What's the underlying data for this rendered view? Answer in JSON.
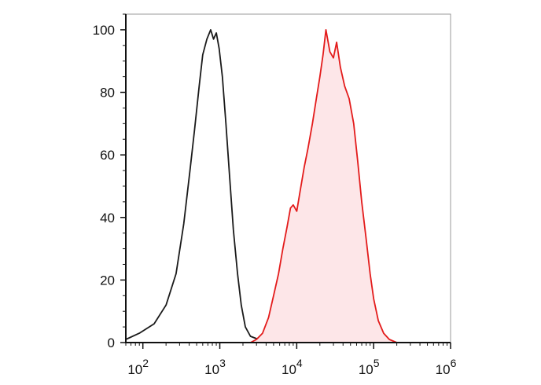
{
  "chart_data": {
    "type": "area",
    "x_scale": "log",
    "xlim": [
      60,
      1000000
    ],
    "ylim": [
      0,
      105
    ],
    "grid": false,
    "legend": "none",
    "x_ticks": [
      {
        "value": 100,
        "base": "10",
        "exp": "2"
      },
      {
        "value": 1000,
        "base": "10",
        "exp": "3"
      },
      {
        "value": 10000,
        "base": "10",
        "exp": "4"
      },
      {
        "value": 100000,
        "base": "10",
        "exp": "5"
      },
      {
        "value": 1000000,
        "base": "10",
        "exp": "6"
      }
    ],
    "y_ticks": [
      0,
      20,
      40,
      60,
      80,
      100
    ],
    "series": [
      {
        "color": "#1a1a1a",
        "fill": "none",
        "points": [
          [
            60,
            1
          ],
          [
            90,
            3
          ],
          [
            140,
            6
          ],
          [
            200,
            12
          ],
          [
            270,
            22
          ],
          [
            340,
            38
          ],
          [
            410,
            55
          ],
          [
            470,
            68
          ],
          [
            540,
            82
          ],
          [
            600,
            92
          ],
          [
            680,
            97
          ],
          [
            760,
            100
          ],
          [
            830,
            97
          ],
          [
            900,
            99
          ],
          [
            980,
            94
          ],
          [
            1080,
            85
          ],
          [
            1200,
            70
          ],
          [
            1350,
            52
          ],
          [
            1500,
            36
          ],
          [
            1700,
            22
          ],
          [
            1900,
            12
          ],
          [
            2150,
            5
          ],
          [
            2500,
            2
          ],
          [
            3200,
            1
          ],
          [
            4500,
            0
          ],
          [
            6000,
            0
          ]
        ]
      },
      {
        "color": "#e31b1b",
        "fill": "#fde6e8",
        "points": [
          [
            2500,
            0
          ],
          [
            3000,
            1
          ],
          [
            3600,
            3
          ],
          [
            4300,
            8
          ],
          [
            5000,
            15
          ],
          [
            5800,
            22
          ],
          [
            6600,
            30
          ],
          [
            7500,
            37
          ],
          [
            8300,
            43
          ],
          [
            9000,
            44
          ],
          [
            10000,
            42
          ],
          [
            11000,
            48
          ],
          [
            12500,
            56
          ],
          [
            14000,
            62
          ],
          [
            16000,
            70
          ],
          [
            18000,
            78
          ],
          [
            20000,
            85
          ],
          [
            22000,
            92
          ],
          [
            24000,
            100
          ],
          [
            27000,
            93
          ],
          [
            30000,
            91
          ],
          [
            33000,
            96
          ],
          [
            37000,
            88
          ],
          [
            42000,
            82
          ],
          [
            48000,
            78
          ],
          [
            55000,
            70
          ],
          [
            62000,
            58
          ],
          [
            70000,
            45
          ],
          [
            80000,
            33
          ],
          [
            90000,
            22
          ],
          [
            100000,
            14
          ],
          [
            115000,
            7
          ],
          [
            135000,
            3
          ],
          [
            160000,
            1
          ],
          [
            200000,
            0
          ]
        ]
      }
    ]
  }
}
